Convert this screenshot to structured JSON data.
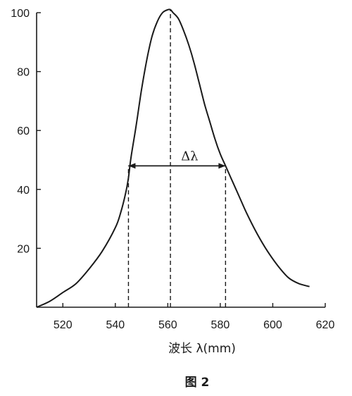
{
  "chart_data": {
    "type": "line",
    "xlabel": "波长 λ(mm)",
    "ylabel": "",
    "caption": "图 2",
    "xlim": [
      510,
      620
    ],
    "ylim": [
      0,
      100
    ],
    "x_ticks": [
      520,
      540,
      560,
      580,
      600,
      620
    ],
    "y_ticks": [
      20,
      40,
      60,
      80,
      100
    ],
    "grid": false,
    "series": [
      {
        "x": [
          510,
          515,
          520,
          525,
          530,
          535,
          540,
          542,
          544,
          545,
          546,
          548,
          550,
          552,
          554,
          556,
          558,
          560,
          561,
          562,
          564,
          566,
          568,
          570,
          572,
          574,
          576,
          578,
          580,
          582,
          584,
          586,
          588,
          590,
          594,
          598,
          602,
          606,
          610,
          614
        ],
        "y": [
          0,
          2,
          5,
          8,
          13,
          19,
          27,
          32,
          39,
          44,
          51,
          62,
          74,
          84,
          92,
          97,
          100,
          101,
          101,
          100,
          98,
          94,
          89,
          83,
          76,
          69,
          63,
          57,
          52,
          48,
          44,
          40,
          36,
          32,
          25,
          19,
          14,
          10,
          8,
          7
        ]
      }
    ],
    "annotations": {
      "delta_label": "Δλ",
      "fwhm_y": 48,
      "fwhm_left_x": 545,
      "fwhm_right_x": 582,
      "peak_x": 561
    }
  }
}
